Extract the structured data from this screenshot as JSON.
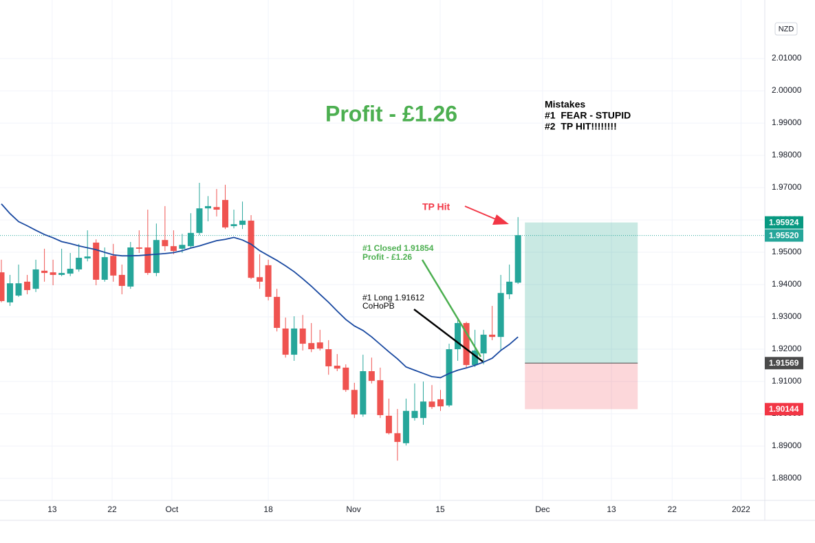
{
  "chart_data": {
    "type": "candlestick",
    "currency": "NZD",
    "xlim": [
      -0.16,
      88.66
    ],
    "ylim": [
      1.8732,
      2.0281
    ],
    "grid": true,
    "xticks": [
      {
        "value": 5.9,
        "label": "13"
      },
      {
        "value": 12.86,
        "label": "22"
      },
      {
        "value": 19.8,
        "label": "Oct"
      },
      {
        "value": 31,
        "label": "18"
      },
      {
        "value": 40.9,
        "label": "Nov"
      },
      {
        "value": 50.96,
        "label": "15"
      },
      {
        "value": 62.85,
        "label": "Dec"
      },
      {
        "value": 70.85,
        "label": "13"
      },
      {
        "value": 77.9,
        "label": "22"
      },
      {
        "value": 85.9,
        "label": "2022"
      }
    ],
    "yticks": [
      {
        "value": 1.88,
        "label": "1.88000"
      },
      {
        "value": 1.89,
        "label": "1.89000"
      },
      {
        "value": 1.9,
        "label": "1.90000"
      },
      {
        "value": 1.91,
        "label": "1.91000"
      },
      {
        "value": 1.92,
        "label": "1.92000"
      },
      {
        "value": 1.93,
        "label": "1.93000"
      },
      {
        "value": 1.94,
        "label": "1.94000"
      },
      {
        "value": 1.95,
        "label": "1.95000"
      },
      {
        "value": 1.96,
        "label": "1.96000"
      },
      {
        "value": 1.97,
        "label": "1.97000"
      },
      {
        "value": 1.98,
        "label": "1.98000"
      },
      {
        "value": 1.99,
        "label": "1.99000"
      },
      {
        "value": 2,
        "label": "2.00000"
      },
      {
        "value": 2.01,
        "label": "2.01000"
      }
    ],
    "up_color": "#26a69a",
    "down_color": "#ef5350",
    "open": [
      1.9438,
      1.9345,
      1.9366,
      1.9409,
      1.9387,
      1.9443,
      1.9438,
      1.943,
      1.9434,
      1.9447,
      1.9481,
      1.953,
      1.9415,
      1.9489,
      1.943,
      1.9394,
      1.9515,
      1.9515,
      1.9436,
      1.9538,
      1.9519,
      1.9511,
      1.9519,
      1.956,
      1.9636,
      1.964,
      1.9662,
      1.9581,
      1.9585,
      1.9598,
      1.9423,
      1.946,
      1.9362,
      1.9264,
      1.9183,
      1.9264,
      1.9219,
      1.9221,
      1.92,
      1.9149,
      1.9143,
      1.9074,
      1.8998,
      1.9132,
      1.9104,
      1.8994,
      1.894,
      1.8909,
      1.8987,
      1.8987,
      1.9038,
      1.9045,
      1.9026,
      1.92,
      1.9281,
      1.9151,
      1.9187,
      1.9245,
      1.9238,
      1.937,
      1.9406
    ],
    "high": [
      1.9477,
      1.943,
      1.9462,
      1.943,
      1.9477,
      1.9511,
      1.9477,
      1.9511,
      1.9498,
      1.9526,
      1.9568,
      1.954,
      1.9515,
      1.9526,
      1.9462,
      1.9532,
      1.9568,
      1.9632,
      1.9589,
      1.9643,
      1.9568,
      1.9557,
      1.9621,
      1.9715,
      1.9674,
      1.9696,
      1.9709,
      1.9632,
      1.9657,
      1.9615,
      1.9494,
      1.9477,
      1.9387,
      1.9298,
      1.9302,
      1.9306,
      1.9281,
      1.926,
      1.9228,
      1.9185,
      1.9153,
      1.9096,
      1.9183,
      1.9174,
      1.9143,
      1.9047,
      1.9015,
      1.9047,
      1.9094,
      1.91,
      1.9089,
      1.9074,
      1.9217,
      1.9291,
      1.9285,
      1.926,
      1.926,
      1.9334,
      1.943,
      1.9462,
      1.9609
    ],
    "low": [
      1.9345,
      1.9334,
      1.9362,
      1.937,
      1.9377,
      1.9409,
      1.9398,
      1.9426,
      1.9426,
      1.944,
      1.9472,
      1.9398,
      1.9409,
      1.9409,
      1.937,
      1.9387,
      1.9498,
      1.943,
      1.9426,
      1.9504,
      1.9494,
      1.9498,
      1.9515,
      1.9553,
      1.9596,
      1.9611,
      1.9572,
      1.9574,
      1.9572,
      1.9417,
      1.9387,
      1.9351,
      1.9255,
      1.9174,
      1.9164,
      1.9196,
      1.9191,
      1.9196,
      1.9121,
      1.9132,
      1.9068,
      1.8987,
      1.8991,
      1.9094,
      1.8987,
      1.8936,
      1.8855,
      1.8902,
      1.8979,
      1.8966,
      1.9015,
      1.9009,
      1.9021,
      1.9164,
      1.914,
      1.9145,
      1.9153,
      1.9228,
      1.9196,
      1.9355,
      1.9402
    ],
    "close": [
      1.9349,
      1.9404,
      1.9404,
      1.9383,
      1.9447,
      1.9436,
      1.943,
      1.9436,
      1.9449,
      1.9483,
      1.9487,
      1.9415,
      1.9485,
      1.9428,
      1.9396,
      1.9515,
      1.9511,
      1.9436,
      1.9538,
      1.9519,
      1.9504,
      1.9523,
      1.956,
      1.9636,
      1.9643,
      1.9632,
      1.9577,
      1.9587,
      1.9598,
      1.9421,
      1.9409,
      1.9362,
      1.9266,
      1.9183,
      1.9264,
      1.9217,
      1.92,
      1.9202,
      1.9147,
      1.914,
      1.9074,
      1.8998,
      1.9132,
      1.9102,
      1.8996,
      1.894,
      1.8913,
      1.9009,
      1.9009,
      1.9038,
      1.9021,
      1.9023,
      1.92,
      1.9281,
      1.9151,
      1.9196,
      1.9245,
      1.9238,
      1.9374,
      1.9409,
      1.9553
    ],
    "ma": {
      "color": "#1848a0",
      "values": [
        1.965,
        1.962,
        1.9595,
        1.9582,
        1.9568,
        1.9555,
        1.9545,
        1.9533,
        1.9527,
        1.952,
        1.9514,
        1.9508,
        1.95,
        1.9492,
        1.9489,
        1.9489,
        1.949,
        1.9492,
        1.9494,
        1.9496,
        1.9499,
        1.9505,
        1.9513,
        1.952,
        1.9528,
        1.9536,
        1.954,
        1.9546,
        1.9538,
        1.9525,
        1.9505,
        1.949,
        1.9475,
        1.9458,
        1.944,
        1.9418,
        1.9395,
        1.937,
        1.9345,
        1.9318,
        1.9292,
        1.9272,
        1.9258,
        1.9238,
        1.9215,
        1.9192,
        1.917,
        1.9145,
        1.9135,
        1.9125,
        1.9115,
        1.9112,
        1.9125,
        1.9135,
        1.9142,
        1.915,
        1.916,
        1.9172,
        1.9196,
        1.9215,
        1.9238
      ]
    },
    "last_price": {
      "value": 1.9552,
      "label": "1.95520"
    },
    "position": {
      "x_start": 60.8,
      "x_end": 73.9,
      "take_profit": 1.95924,
      "entry": 1.91569,
      "stop_loss": 1.90144,
      "take_profit_color": "#089981",
      "entry_color": "#4a4a4a",
      "stop_loss_color": "#f23645"
    },
    "annotations": {
      "title": "Profit - £1.26",
      "notes": [
        "Mistakes",
        "#1  FEAR - STUPID",
        "#2  TP HIT!!!!!!!!"
      ],
      "tp_hit": "TP Hit",
      "closed": [
        "#1 Closed 1.91854",
        "Profit - £1.26"
      ],
      "long": [
        "#1 Long 1.91612",
        "CoHoPB"
      ]
    }
  }
}
